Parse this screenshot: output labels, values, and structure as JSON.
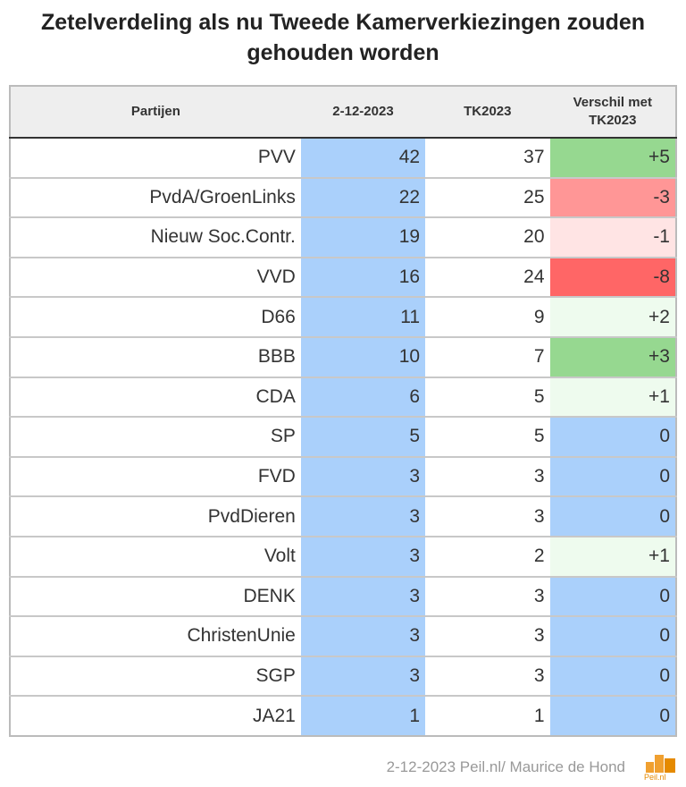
{
  "title": "Zetelverdeling als nu Tweede Kamerverkiezingen zouden gehouden worden",
  "footer": "2-12-2023 Peil.nl/ Maurice de Hond",
  "logo_text": "Peil.nl",
  "colors": {
    "poll_column": "#aad0fb",
    "positive_large": "#96d890",
    "positive_small": "#eefbee",
    "negative_large": "#ff6666",
    "negative_medium": "#ff9696",
    "negative_small": "#ffe4e4",
    "zero": "#aad0fb"
  },
  "chart_data": {
    "type": "table",
    "columns": [
      "Partijen",
      "2-12-2023",
      "TK2023",
      "Verschil met TK2023"
    ],
    "rows": [
      {
        "party": "PVV",
        "poll": "42",
        "tk": "37",
        "diff": "+5",
        "color": "#96d890"
      },
      {
        "party": "PvdA/GroenLinks",
        "poll": "22",
        "tk": "25",
        "diff": "-3",
        "color": "#ff9696"
      },
      {
        "party": "Nieuw Soc.Contr.",
        "poll": "19",
        "tk": "20",
        "diff": "-1",
        "color": "#ffe4e4"
      },
      {
        "party": "VVD",
        "poll": "16",
        "tk": "24",
        "diff": "-8",
        "color": "#ff6666"
      },
      {
        "party": "D66",
        "poll": "11",
        "tk": "9",
        "diff": "+2",
        "color": "#eefbee"
      },
      {
        "party": "BBB",
        "poll": "10",
        "tk": "7",
        "diff": "+3",
        "color": "#96d890"
      },
      {
        "party": "CDA",
        "poll": "6",
        "tk": "5",
        "diff": "+1",
        "color": "#eefbee"
      },
      {
        "party": "SP",
        "poll": "5",
        "tk": "5",
        "diff": "0",
        "color": "#aad0fb"
      },
      {
        "party": "FVD",
        "poll": "3",
        "tk": "3",
        "diff": "0",
        "color": "#aad0fb"
      },
      {
        "party": "PvdDieren",
        "poll": "3",
        "tk": "3",
        "diff": "0",
        "color": "#aad0fb"
      },
      {
        "party": "Volt",
        "poll": "3",
        "tk": "2",
        "diff": "+1",
        "color": "#eefbee"
      },
      {
        "party": "DENK",
        "poll": "3",
        "tk": "3",
        "diff": "0",
        "color": "#aad0fb"
      },
      {
        "party": "ChristenUnie",
        "poll": "3",
        "tk": "3",
        "diff": "0",
        "color": "#aad0fb"
      },
      {
        "party": "SGP",
        "poll": "3",
        "tk": "3",
        "diff": "0",
        "color": "#aad0fb"
      },
      {
        "party": "JA21",
        "poll": "1",
        "tk": "1",
        "diff": "0",
        "color": "#aad0fb"
      }
    ]
  }
}
